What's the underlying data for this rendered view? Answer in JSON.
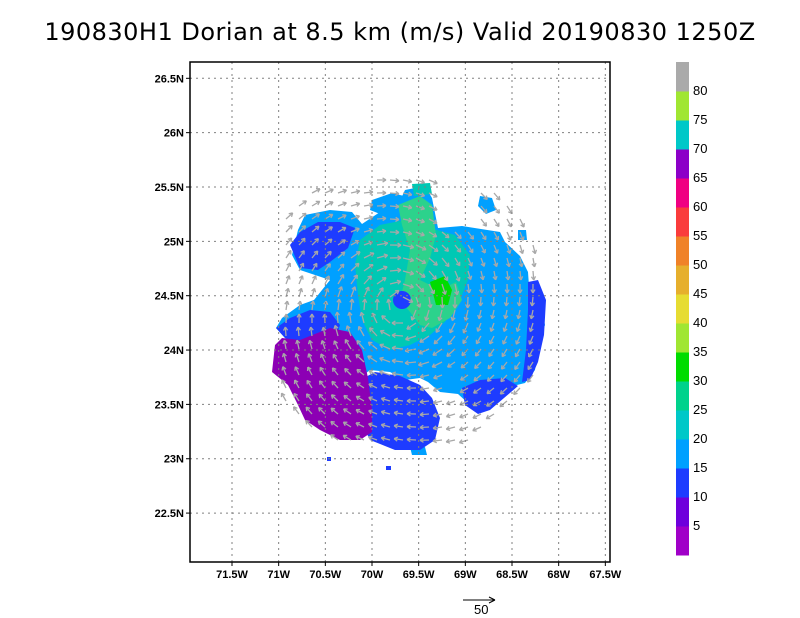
{
  "title": "190830H1 Dorian at 8.5 km (m/s) Valid 20190830 1250Z",
  "map": {
    "lat_ticks": [
      "26.5N",
      "26N",
      "25.5N",
      "25N",
      "24.5N",
      "24N",
      "23.5N",
      "23N",
      "22.5N"
    ],
    "lon_ticks": [
      "71.5W",
      "71W",
      "70.5W",
      "70W",
      "69.5W",
      "69W",
      "68.5W",
      "68W",
      "67.5W"
    ],
    "lat_range": [
      22.05,
      26.65
    ],
    "lon_range": [
      -71.95,
      -67.45
    ],
    "grid": true,
    "storm_center": {
      "lat": 24.4,
      "lon": -69.7
    }
  },
  "colorbar": {
    "labels": [
      "5",
      "10",
      "15",
      "20",
      "25",
      "30",
      "35",
      "40",
      "45",
      "50",
      "55",
      "60",
      "65",
      "70",
      "75",
      "80"
    ],
    "colors": [
      "#a000c8",
      "#6e00dc",
      "#1e3cff",
      "#00a0ff",
      "#00c8c8",
      "#00d28c",
      "#00dc00",
      "#a0e632",
      "#e6dc32",
      "#e6af2d",
      "#f08228",
      "#fa3c3c",
      "#f00082",
      "#8c00c8",
      "#00c8c8",
      "#a0e632",
      "#aaaaaa"
    ]
  },
  "reference_vector": {
    "label": "50"
  },
  "colors": {
    "arrow": "#a8a8a8",
    "grid": "#808080"
  }
}
